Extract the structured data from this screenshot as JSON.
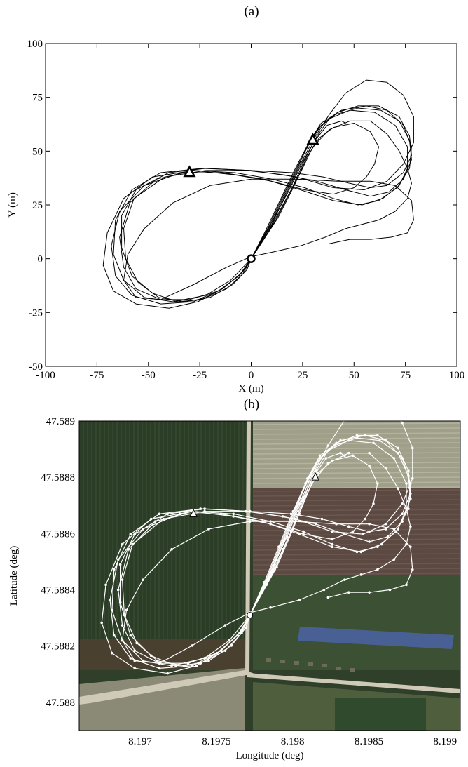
{
  "chart_data": [
    {
      "panel": "(a)",
      "type": "line",
      "xlabel": "X (m)",
      "ylabel": "Y (m)",
      "xlim": [
        -100,
        100
      ],
      "ylim": [
        -50,
        100
      ],
      "xticks": [
        -100,
        -75,
        -50,
        -25,
        0,
        25,
        50,
        75,
        100
      ],
      "yticks": [
        -50,
        -25,
        0,
        25,
        50,
        75,
        100
      ],
      "xtick_labels": [
        "-100",
        "-75",
        "-50",
        "-25",
        "0",
        "25",
        "50",
        "75",
        "100"
      ],
      "ytick_labels": [
        "-50",
        "-25",
        "0",
        "25",
        "50",
        "75",
        "100"
      ],
      "grid": false,
      "markers": [
        {
          "shape": "circle",
          "x": 0,
          "y": 0
        },
        {
          "shape": "triangle",
          "x": -30,
          "y": 40
        },
        {
          "shape": "triangle",
          "x": 30,
          "y": 55
        }
      ],
      "line_color": "#000000",
      "series": [
        {
          "values": [
            [
              0,
              0
            ],
            [
              8,
              14
            ],
            [
              15,
              28
            ],
            [
              22,
              42
            ],
            [
              28,
              53
            ],
            [
              34,
              62
            ],
            [
              42,
              68
            ],
            [
              52,
              71
            ],
            [
              62,
              71
            ],
            [
              72,
              66
            ],
            [
              77,
              57
            ],
            [
              78,
              48
            ],
            [
              74,
              40
            ],
            [
              66,
              34
            ],
            [
              58,
              33
            ],
            [
              48,
              35
            ],
            [
              35,
              38
            ],
            [
              20,
              40
            ],
            [
              0,
              41
            ],
            [
              -22,
              42
            ],
            [
              -40,
              40
            ],
            [
              -56,
              32
            ],
            [
              -63,
              20
            ],
            [
              -63,
              5
            ],
            [
              -58,
              -8
            ],
            [
              -48,
              -16
            ],
            [
              -36,
              -20
            ],
            [
              -24,
              -19
            ],
            [
              -12,
              -14
            ],
            [
              -4,
              -7
            ],
            [
              0,
              0
            ]
          ]
        },
        {
          "values": [
            [
              0,
              0
            ],
            [
              7,
              13
            ],
            [
              14,
              27
            ],
            [
              21,
              41
            ],
            [
              27,
              52
            ],
            [
              33,
              61
            ],
            [
              41,
              67
            ],
            [
              52,
              70
            ],
            [
              63,
              69
            ],
            [
              72,
              64
            ],
            [
              77,
              55
            ],
            [
              78,
              46
            ],
            [
              74,
              37
            ],
            [
              67,
              31
            ],
            [
              58,
              29
            ],
            [
              46,
              32
            ],
            [
              32,
              36
            ],
            [
              16,
              39
            ],
            [
              -2,
              41
            ],
            [
              -22,
              41
            ],
            [
              -42,
              38
            ],
            [
              -57,
              28
            ],
            [
              -62,
              14
            ],
            [
              -61,
              0
            ],
            [
              -55,
              -11
            ],
            [
              -45,
              -18
            ],
            [
              -32,
              -20
            ],
            [
              -20,
              -18
            ],
            [
              -9,
              -12
            ],
            [
              -2,
              -5
            ],
            [
              0,
              0
            ]
          ]
        },
        {
          "values": [
            [
              0,
              0
            ],
            [
              9,
              15
            ],
            [
              16,
              29
            ],
            [
              23,
              43
            ],
            [
              28,
              54
            ],
            [
              34,
              63
            ],
            [
              44,
              69
            ],
            [
              56,
              71
            ],
            [
              66,
              69
            ],
            [
              74,
              62
            ],
            [
              78,
              52
            ],
            [
              77,
              42
            ],
            [
              71,
              33
            ],
            [
              62,
              27
            ],
            [
              52,
              25
            ],
            [
              40,
              28
            ],
            [
              26,
              33
            ],
            [
              10,
              37
            ],
            [
              -8,
              40
            ],
            [
              -28,
              41
            ],
            [
              -46,
              37
            ],
            [
              -59,
              26
            ],
            [
              -64,
              10
            ],
            [
              -62,
              -4
            ],
            [
              -56,
              -14
            ],
            [
              -44,
              -19
            ],
            [
              -30,
              -19
            ],
            [
              -16,
              -15
            ],
            [
              -6,
              -8
            ],
            [
              0,
              0
            ]
          ]
        },
        {
          "values": [
            [
              0,
              0
            ],
            [
              10,
              16
            ],
            [
              17,
              30
            ],
            [
              24,
              44
            ],
            [
              30,
              55
            ],
            [
              38,
              67
            ],
            [
              46,
              77
            ],
            [
              56,
              83
            ],
            [
              66,
              82
            ],
            [
              74,
              76
            ],
            [
              79,
              66
            ],
            [
              79,
              54
            ],
            [
              74,
              44
            ],
            [
              66,
              36
            ],
            [
              55,
              32
            ],
            [
              40,
              33
            ],
            [
              22,
              38
            ],
            [
              0,
              41
            ],
            [
              -24,
              42
            ],
            [
              -44,
              40
            ],
            [
              -58,
              32
            ],
            [
              -66,
              18
            ],
            [
              -67,
              2
            ],
            [
              -62,
              -10
            ],
            [
              -52,
              -18
            ],
            [
              -38,
              -20
            ],
            [
              -22,
              -17
            ],
            [
              -10,
              -10
            ],
            [
              0,
              0
            ]
          ]
        },
        {
          "values": [
            [
              0,
              0
            ],
            [
              12,
              18
            ],
            [
              20,
              33
            ],
            [
              26,
              46
            ],
            [
              32,
              57
            ],
            [
              38,
              65
            ],
            [
              48,
              69
            ],
            [
              60,
              68
            ],
            [
              70,
              62
            ],
            [
              76,
              52
            ],
            [
              76,
              42
            ],
            [
              72,
              34
            ],
            [
              64,
              28
            ],
            [
              54,
              25
            ],
            [
              40,
              27
            ],
            [
              24,
              32
            ],
            [
              6,
              37
            ],
            [
              -14,
              40
            ],
            [
              -34,
              40
            ],
            [
              -52,
              34
            ],
            [
              -64,
              22
            ],
            [
              -68,
              6
            ],
            [
              -66,
              -8
            ],
            [
              -58,
              -17
            ],
            [
              -44,
              -21
            ],
            [
              -28,
              -20
            ],
            [
              -14,
              -14
            ],
            [
              -4,
              -6
            ],
            [
              0,
              0
            ]
          ]
        },
        {
          "values": [
            [
              0,
              0
            ],
            [
              13,
              19
            ],
            [
              21,
              34
            ],
            [
              27,
              47
            ],
            [
              33,
              56
            ],
            [
              40,
              61
            ],
            [
              50,
              63
            ],
            [
              58,
              59
            ],
            [
              62,
              52
            ],
            [
              60,
              44
            ],
            [
              56,
              38
            ],
            [
              50,
              33
            ],
            [
              40,
              30
            ],
            [
              26,
              32
            ],
            [
              10,
              36
            ],
            [
              -8,
              39
            ],
            [
              -28,
              41
            ],
            [
              -48,
              38
            ],
            [
              -62,
              28
            ],
            [
              -70,
              12
            ],
            [
              -72,
              -3
            ],
            [
              -67,
              -15
            ],
            [
              -56,
              -21
            ],
            [
              -40,
              -23
            ],
            [
              -26,
              -20
            ],
            [
              -14,
              -14
            ],
            [
              -5,
              -7
            ],
            [
              0,
              0
            ]
          ]
        },
        {
          "values": [
            [
              0,
              0
            ],
            [
              8,
              12
            ],
            [
              16,
              26
            ],
            [
              24,
              40
            ],
            [
              30,
              52
            ],
            [
              38,
              60
            ],
            [
              48,
              64
            ],
            [
              58,
              64
            ],
            [
              66,
              58
            ],
            [
              72,
              50
            ],
            [
              76,
              42
            ],
            [
              78,
              35
            ],
            [
              76,
              28
            ],
            [
              70,
              22
            ],
            [
              62,
              18
            ],
            [
              54,
              16
            ],
            [
              46,
              14
            ],
            [
              36,
              10
            ],
            [
              24,
              6
            ],
            [
              10,
              3
            ],
            [
              0,
              1
            ],
            [
              -12,
              -4
            ],
            [
              -28,
              -12
            ],
            [
              -44,
              -19
            ],
            [
              -56,
              -18
            ],
            [
              -62,
              -10
            ],
            [
              -60,
              2
            ],
            [
              -52,
              14
            ],
            [
              -38,
              26
            ],
            [
              -20,
              34
            ],
            [
              0,
              37
            ],
            [
              22,
              37
            ],
            [
              42,
              36
            ],
            [
              58,
              36
            ],
            [
              70,
              34
            ],
            [
              78,
              27
            ],
            [
              79,
              18
            ],
            [
              76,
              12
            ],
            [
              68,
              10
            ],
            [
              58,
              9
            ],
            [
              48,
              9
            ],
            [
              38,
              7
            ]
          ]
        },
        {
          "values": [
            [
              0,
              0
            ],
            [
              10,
              17
            ],
            [
              18,
              31
            ],
            [
              25,
              45
            ],
            [
              31,
              55
            ],
            [
              37,
              62
            ],
            [
              44,
              64
            ],
            [
              46,
              63
            ]
          ]
        }
      ]
    },
    {
      "panel": "(b)",
      "type": "line",
      "xlabel": "Longitude (deg)",
      "ylabel": "Latitude (deg)",
      "xlim": [
        8.1966,
        8.1991
      ],
      "ylim": [
        47.5879,
        47.589
      ],
      "xticks": [
        8.197,
        8.1975,
        8.198,
        8.1985,
        8.199
      ],
      "yticks": [
        47.588,
        47.5882,
        47.5884,
        47.5886,
        47.5888,
        47.589
      ],
      "xtick_labels": [
        "8.197",
        "8.1975",
        "8.198",
        "8.1985",
        "8.199"
      ],
      "ytick_labels": [
        "47.588",
        "47.5882",
        "47.5884",
        "47.5886",
        "47.5888",
        "47.589"
      ],
      "grid": false,
      "background": "satellite-image",
      "line_color": "#ffffff",
      "markers": [
        {
          "shape": "circle",
          "x": 8.19772,
          "y": 47.58831
        },
        {
          "shape": "triangle",
          "x": 8.19735,
          "y": 47.58867
        },
        {
          "shape": "triangle",
          "x": 8.19815,
          "y": 47.5888
        }
      ]
    }
  ]
}
